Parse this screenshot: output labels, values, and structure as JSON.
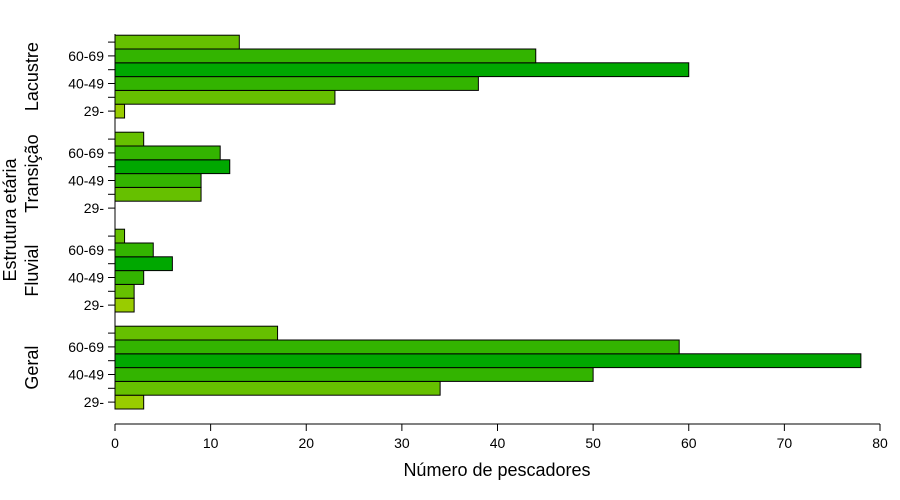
{
  "chart_data": {
    "type": "bar",
    "orientation": "horizontal",
    "xlabel": "Número de pescadores",
    "ylabel": "Estrutura etária",
    "xlim": [
      0,
      80
    ],
    "x_ticks": [
      0,
      10,
      20,
      30,
      40,
      50,
      60,
      70,
      80
    ],
    "grid": false,
    "legend": "none",
    "category_tick_labels": [
      "29-",
      "40-49",
      "60-69"
    ],
    "groups": [
      {
        "label": "Geral",
        "values": [
          3,
          34,
          50,
          78,
          59,
          17
        ]
      },
      {
        "label": "Fluvial",
        "values": [
          2,
          2,
          3,
          6,
          4,
          1
        ]
      },
      {
        "label": "Transição",
        "values": [
          0,
          9,
          9,
          12,
          11,
          3
        ]
      },
      {
        "label": "Lacustre",
        "values": [
          1,
          23,
          38,
          60,
          44,
          13
        ]
      }
    ],
    "bar_colors": [
      "#99cc00",
      "#66c000",
      "#33b400",
      "#00a800",
      "#33b400",
      "#66c000"
    ]
  }
}
